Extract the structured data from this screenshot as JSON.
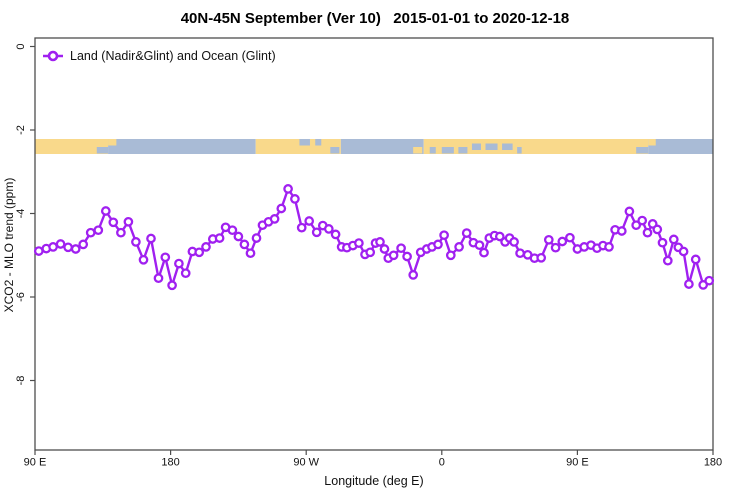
{
  "colors": {
    "series": "#A020F0",
    "land": "#F9D98B",
    "ocean": "#A9BBD6",
    "axis": "#4d4d4d",
    "text": "#111111"
  },
  "chart_data": {
    "type": "line",
    "title": "40N-45N September (Ver 10)   2015-01-01 to 2020-12-18",
    "xlabel": "Longitude (deg E)",
    "ylabel": "XCO2 - MLO trend (ppm)",
    "legend": [
      {
        "label": "Land (Nadir&Glint) and Ocean (Glint)",
        "color": "#A020F0",
        "marker": "open-circle"
      }
    ],
    "x_axis": {
      "lon_min": 90,
      "lon_max": 540,
      "note": "longitude increases eastward from 90E, wrapping through 180, 90W, 0, 90E to 180",
      "ticks": [
        {
          "label": "90 E",
          "lon": 90
        },
        {
          "label": "180",
          "lon": 180
        },
        {
          "label": "90 W",
          "lon": 270
        },
        {
          "label": "0",
          "lon": 360
        },
        {
          "label": "90 E",
          "lon": 450
        },
        {
          "label": "180",
          "lon": 540
        }
      ]
    },
    "y_axis": {
      "min": -9.7,
      "max": 0.2,
      "ticks": [
        {
          "label": "0",
          "value": 0
        },
        {
          "label": "-2",
          "value": -2
        },
        {
          "label": "-4",
          "value": -4
        },
        {
          "label": "-6",
          "value": -6
        },
        {
          "label": "-8",
          "value": -8
        }
      ]
    },
    "map_strip": {
      "value_top": -2.24,
      "value_bottom": -2.6,
      "segments": [
        {
          "from": 90,
          "to": 138.5,
          "type": "land"
        },
        {
          "from": 138.5,
          "to": 236.5,
          "type": "ocean"
        },
        {
          "from": 236.5,
          "to": 293,
          "type": "land"
        },
        {
          "from": 293,
          "to": 348,
          "type": "ocean"
        },
        {
          "from": 348,
          "to": 497,
          "type": "land"
        },
        {
          "from": 497,
          "to": 540,
          "type": "ocean"
        }
      ],
      "speckles": [
        {
          "from": 131,
          "to": 138.5,
          "type": "ocean",
          "pos": "bottom"
        },
        {
          "from": 138.5,
          "to": 144,
          "type": "land",
          "pos": "top"
        },
        {
          "from": 265.5,
          "to": 272.5,
          "type": "ocean",
          "pos": "top"
        },
        {
          "from": 276,
          "to": 280,
          "type": "ocean",
          "pos": "top"
        },
        {
          "from": 286,
          "to": 292,
          "type": "ocean",
          "pos": "bottom"
        },
        {
          "from": 341,
          "to": 347,
          "type": "land",
          "pos": "bottom"
        },
        {
          "from": 352,
          "to": 356,
          "type": "ocean",
          "pos": "bottom"
        },
        {
          "from": 360,
          "to": 368,
          "type": "ocean",
          "pos": "bottom"
        },
        {
          "from": 371,
          "to": 377,
          "type": "ocean",
          "pos": "bottom"
        },
        {
          "from": 380,
          "to": 386,
          "type": "ocean",
          "pos": "mid"
        },
        {
          "from": 389,
          "to": 397,
          "type": "ocean",
          "pos": "mid"
        },
        {
          "from": 400,
          "to": 407,
          "type": "ocean",
          "pos": "mid"
        },
        {
          "from": 410,
          "to": 413,
          "type": "ocean",
          "pos": "bottom"
        },
        {
          "from": 489,
          "to": 497,
          "type": "ocean",
          "pos": "bottom"
        },
        {
          "from": 497,
          "to": 502,
          "type": "land",
          "pos": "top"
        }
      ]
    },
    "series": [
      {
        "name": "Land (Nadir&Glint) and Ocean (Glint)",
        "color": "#A020F0",
        "points": [
          [
            92.5,
            -4.9
          ],
          [
            97.5,
            -4.84
          ],
          [
            102,
            -4.8
          ],
          [
            107,
            -4.73
          ],
          [
            112,
            -4.81
          ],
          [
            117,
            -4.85
          ],
          [
            122,
            -4.74
          ],
          [
            127,
            -4.46
          ],
          [
            132,
            -4.4
          ],
          [
            137,
            -3.94
          ],
          [
            142,
            -4.21
          ],
          [
            147,
            -4.46
          ],
          [
            152,
            -4.2
          ],
          [
            157,
            -4.68
          ],
          [
            162,
            -5.11
          ],
          [
            167,
            -4.6
          ],
          [
            172,
            -5.55
          ],
          [
            176.5,
            -5.05
          ],
          [
            181,
            -5.72
          ],
          [
            185.5,
            -5.2
          ],
          [
            190,
            -5.43
          ],
          [
            194.5,
            -4.91
          ],
          [
            199,
            -4.93
          ],
          [
            203.5,
            -4.8
          ],
          [
            208,
            -4.61
          ],
          [
            212.5,
            -4.59
          ],
          [
            216.5,
            -4.33
          ],
          [
            221,
            -4.4
          ],
          [
            225,
            -4.55
          ],
          [
            229,
            -4.74
          ],
          [
            233,
            -4.95
          ],
          [
            237,
            -4.59
          ],
          [
            241,
            -4.28
          ],
          [
            245,
            -4.2
          ],
          [
            249,
            -4.13
          ],
          [
            253.5,
            -3.88
          ],
          [
            258,
            -3.41
          ],
          [
            262.5,
            -3.65
          ],
          [
            267,
            -4.34
          ],
          [
            272,
            -4.18
          ],
          [
            277,
            -4.45
          ],
          [
            281,
            -4.29
          ],
          [
            285,
            -4.37
          ],
          [
            289.5,
            -4.5
          ],
          [
            293.5,
            -4.8
          ],
          [
            297,
            -4.82
          ],
          [
            301,
            -4.77
          ],
          [
            305,
            -4.71
          ],
          [
            309,
            -4.98
          ],
          [
            312.5,
            -4.93
          ],
          [
            316,
            -4.71
          ],
          [
            319,
            -4.68
          ],
          [
            322,
            -4.85
          ],
          [
            324.5,
            -5.07
          ],
          [
            328,
            -5.0
          ],
          [
            333,
            -4.83
          ],
          [
            337,
            -5.03
          ],
          [
            341,
            -5.47
          ],
          [
            346,
            -4.93
          ],
          [
            350,
            -4.85
          ],
          [
            353.5,
            -4.8
          ],
          [
            357.5,
            -4.74
          ],
          [
            361.5,
            -4.52
          ],
          [
            366,
            -5.0
          ],
          [
            371.5,
            -4.8
          ],
          [
            376.5,
            -4.47
          ],
          [
            381,
            -4.7
          ],
          [
            385,
            -4.76
          ],
          [
            388,
            -4.94
          ],
          [
            391.5,
            -4.59
          ],
          [
            395,
            -4.53
          ],
          [
            398.5,
            -4.55
          ],
          [
            402,
            -4.68
          ],
          [
            405,
            -4.59
          ],
          [
            408,
            -4.68
          ],
          [
            412,
            -4.95
          ],
          [
            417,
            -4.99
          ],
          [
            421.5,
            -5.07
          ],
          [
            426,
            -5.06
          ],
          [
            431,
            -4.63
          ],
          [
            435.5,
            -4.82
          ],
          [
            440,
            -4.67
          ],
          [
            445,
            -4.58
          ],
          [
            450,
            -4.85
          ],
          [
            454.5,
            -4.8
          ],
          [
            459,
            -4.76
          ],
          [
            463,
            -4.83
          ],
          [
            467,
            -4.77
          ],
          [
            471,
            -4.8
          ],
          [
            475,
            -4.39
          ],
          [
            479.5,
            -4.42
          ],
          [
            484.5,
            -3.95
          ],
          [
            489,
            -4.28
          ],
          [
            493,
            -4.17
          ],
          [
            496.5,
            -4.46
          ],
          [
            500,
            -4.25
          ],
          [
            503,
            -4.38
          ],
          [
            506.5,
            -4.7
          ],
          [
            510,
            -5.13
          ],
          [
            514,
            -4.62
          ],
          [
            517,
            -4.81
          ],
          [
            520.5,
            -4.91
          ],
          [
            524,
            -5.69
          ],
          [
            528.5,
            -5.1
          ],
          [
            533.5,
            -5.71
          ],
          [
            537.5,
            -5.61
          ]
        ]
      }
    ]
  }
}
